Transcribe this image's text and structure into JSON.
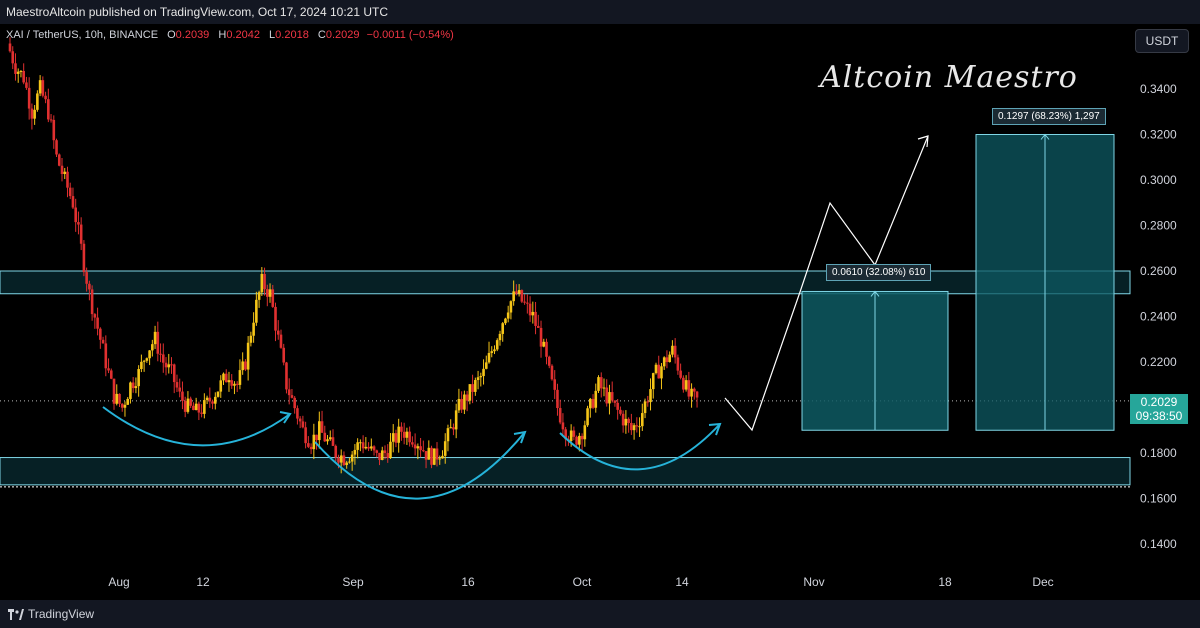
{
  "header": {
    "published_text": "MaestroAltcoin published on TradingView.com, Oct 17, 2024 10:21 UTC"
  },
  "legend": {
    "symbol": "XAI / TetherUS, 10h, BINANCE",
    "open_label": "O",
    "open": "0.2039",
    "high_label": "H",
    "high": "0.2042",
    "low_label": "L",
    "low": "0.2018",
    "close_label": "C",
    "close": "0.2029",
    "change": "−0.0011 (−0.54%)"
  },
  "currency_button": "USDT",
  "watermark": "Altcoin Maestro",
  "price_axis": {
    "ticks": [
      "0.3400",
      "0.3200",
      "0.3000",
      "0.2800",
      "0.2600",
      "0.2400",
      "0.2200",
      "0.1800",
      "0.1600",
      "0.1400"
    ],
    "current_price": "0.2029",
    "countdown": "09:38:50"
  },
  "time_axis": {
    "ticks": [
      "Aug",
      "12",
      "Sep",
      "16",
      "Oct",
      "14",
      "Nov",
      "18",
      "Dec"
    ]
  },
  "measurements": {
    "first": "0.0610 (32.08%) 610",
    "second": "0.1297 (68.23%) 1,297"
  },
  "footer": {
    "brand": "TradingView"
  },
  "colors": {
    "background": "#000000",
    "bull_candle": "#f5c518",
    "bear_candle": "#e03030",
    "zone_fill": "#0b3b44",
    "zone_border": "#7fd6e6",
    "arc_color": "#26b3d9",
    "price_tag": "#26a69a"
  },
  "chart_data": {
    "type": "candlestick",
    "symbol": "XAI / TetherUS",
    "interval": "10h",
    "ylim": [
      0.13,
      0.36
    ],
    "current_price": 0.2029,
    "support_zone": [
      0.166,
      0.178
    ],
    "resistance_zone": [
      0.25,
      0.26
    ],
    "target_1": 0.251,
    "target_2": 0.32,
    "close_path": [
      0.36,
      0.35,
      0.345,
      0.33,
      0.34,
      0.33,
      0.31,
      0.3,
      0.29,
      0.27,
      0.25,
      0.235,
      0.22,
      0.205,
      0.2,
      0.21,
      0.215,
      0.225,
      0.23,
      0.22,
      0.215,
      0.205,
      0.2,
      0.198,
      0.2,
      0.205,
      0.21,
      0.215,
      0.21,
      0.22,
      0.24,
      0.255,
      0.25,
      0.23,
      0.21,
      0.2,
      0.19,
      0.185,
      0.19,
      0.185,
      0.18,
      0.178,
      0.18,
      0.185,
      0.182,
      0.178,
      0.18,
      0.185,
      0.19,
      0.188,
      0.185,
      0.18,
      0.178,
      0.182,
      0.19,
      0.2,
      0.205,
      0.21,
      0.215,
      0.225,
      0.235,
      0.245,
      0.25,
      0.245,
      0.24,
      0.23,
      0.215,
      0.2,
      0.19,
      0.185,
      0.19,
      0.2,
      0.21,
      0.205,
      0.2,
      0.195,
      0.19,
      0.195,
      0.205,
      0.215,
      0.22,
      0.225,
      0.215,
      0.205,
      0.203
    ]
  }
}
